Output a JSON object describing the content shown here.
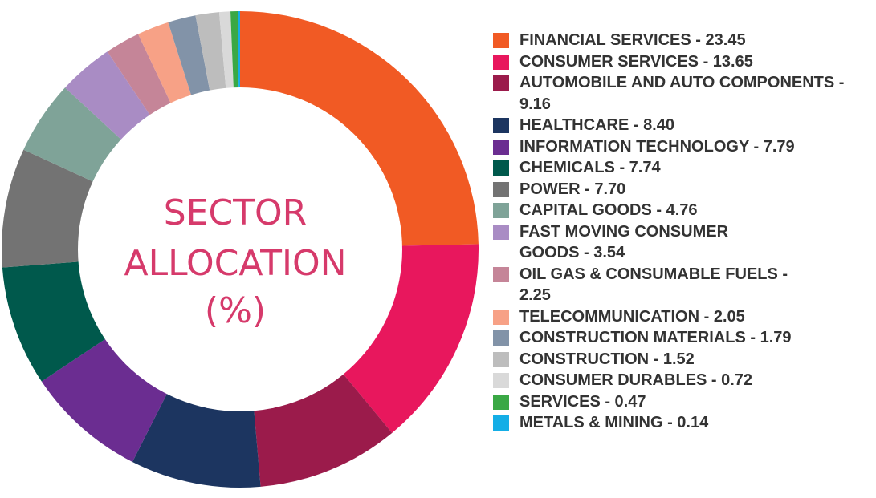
{
  "chart_data": {
    "type": "pie",
    "title": "SECTOR ALLOCATION (%)",
    "center_lines": [
      "SECTOR",
      "ALLOCATION",
      "(%)"
    ],
    "legend_position": "right",
    "slices": [
      {
        "label": "FINANCIAL SERVICES - 23.45",
        "value": 23.45,
        "color": "#f15a24"
      },
      {
        "label": "CONSUMER SERVICES - 13.65",
        "value": 13.65,
        "color": "#e8175d"
      },
      {
        "label": "AUTOMOBILE AND AUTO COMPONENTS - 9.16",
        "value": 9.16,
        "color": "#9b1b4b"
      },
      {
        "label": "HEALTHCARE - 8.40",
        "value": 8.4,
        "color": "#1c3560"
      },
      {
        "label": "INFORMATION TECHNOLOGY - 7.79",
        "value": 7.79,
        "color": "#6b2d91"
      },
      {
        "label": "CHEMICALS - 7.74",
        "value": 7.74,
        "color": "#00594c"
      },
      {
        "label": "POWER - 7.70",
        "value": 7.7,
        "color": "#737373"
      },
      {
        "label": "CAPITAL GOODS - 4.76",
        "value": 4.76,
        "color": "#7fa398"
      },
      {
        "label": "FAST MOVING CONSUMER GOODS - 3.54",
        "value": 3.54,
        "color": "#a98cc4"
      },
      {
        "label": "OIL GAS & CONSUMABLE FUELS - 2.25",
        "value": 2.25,
        "color": "#c58598"
      },
      {
        "label": "TELECOMMUNICATION - 2.05",
        "value": 2.05,
        "color": "#f7a186"
      },
      {
        "label": "CONSTRUCTION MATERIALS - 1.79",
        "value": 1.79,
        "color": "#8293a8"
      },
      {
        "label": "CONSTRUCTION - 1.52",
        "value": 1.52,
        "color": "#bdbdbd"
      },
      {
        "label": "CONSUMER DURABLES - 0.72",
        "value": 0.72,
        "color": "#d9d9d9"
      },
      {
        "label": "SERVICES - 0.47",
        "value": 0.47,
        "color": "#3aa845"
      },
      {
        "label": "METALS & MINING - 0.14",
        "value": 0.14,
        "color": "#14aee6"
      }
    ]
  }
}
